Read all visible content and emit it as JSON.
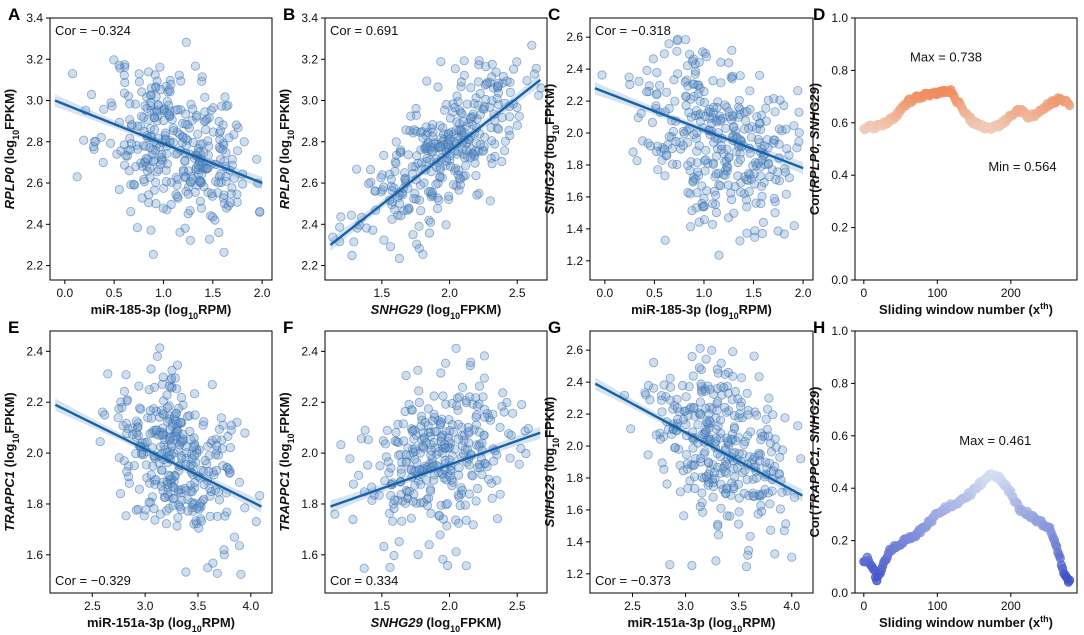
{
  "chart_data": [
    {
      "id": "A",
      "type": "scatter",
      "letter": "A",
      "xlabel": [
        {
          "t": "miR-185-3p (log"
        },
        {
          "t": "10",
          "sub": true
        },
        {
          "t": "RPM)"
        }
      ],
      "ylabel": [
        {
          "t": "RPLP0",
          "i": true
        },
        {
          "t": " (log"
        },
        {
          "t": "10",
          "sub": true
        },
        {
          "t": "FPKM)"
        }
      ],
      "xlim": [
        -0.15,
        2.1
      ],
      "ylim": [
        2.13,
        3.4
      ],
      "xticks": [
        "0.0",
        "0.5",
        "1.0",
        "1.5",
        "2.0"
      ],
      "yticks": [
        "2.2",
        "2.4",
        "2.6",
        "2.8",
        "3.0",
        "3.2",
        "3.4"
      ],
      "annotation": "Cor = −0.324",
      "ann_pos": "top-left",
      "cloud": {
        "n": 340,
        "xm": 1.15,
        "xs": 0.38,
        "ym": 2.78,
        "ys": 0.2,
        "r": -0.324,
        "xmin": -0.1,
        "xmax": 1.98,
        "ymin": 2.17,
        "ymax": 3.3,
        "seed": 11
      },
      "fit": {
        "x": [
          -0.1,
          2.0
        ],
        "y": [
          3.0,
          2.6
        ]
      }
    },
    {
      "id": "B",
      "type": "scatter",
      "letter": "B",
      "xlabel": [
        {
          "t": "SNHG29",
          "i": true
        },
        {
          "t": " (log"
        },
        {
          "t": "10",
          "sub": true
        },
        {
          "t": "FPKM)"
        }
      ],
      "ylabel": [
        {
          "t": "RPLP0",
          "i": true
        },
        {
          "t": " (log"
        },
        {
          "t": "10",
          "sub": true
        },
        {
          "t": "FPKM)"
        }
      ],
      "xlim": [
        1.08,
        2.72
      ],
      "ylim": [
        2.13,
        3.4
      ],
      "xticks": [
        "1.5",
        "2.0",
        "2.5"
      ],
      "yticks": [
        "2.2",
        "2.4",
        "2.6",
        "2.8",
        "3.0",
        "3.2",
        "3.4"
      ],
      "annotation": "Cor = 0.691",
      "ann_pos": "top-left",
      "cloud": {
        "n": 340,
        "xm": 1.95,
        "xs": 0.3,
        "ym": 2.75,
        "ys": 0.2,
        "r": 0.691,
        "xmin": 1.12,
        "xmax": 2.68,
        "ymin": 2.18,
        "ymax": 3.33,
        "seed": 23
      },
      "fit": {
        "x": [
          1.12,
          2.67
        ],
        "y": [
          2.3,
          3.1
        ]
      }
    },
    {
      "id": "C",
      "type": "scatter",
      "letter": "C",
      "xlabel": [
        {
          "t": "miR-185-3p (log"
        },
        {
          "t": "10",
          "sub": true
        },
        {
          "t": "RPM)"
        }
      ],
      "ylabel": [
        {
          "t": "SNHG29",
          "i": true
        },
        {
          "t": " (log"
        },
        {
          "t": "10",
          "sub": true
        },
        {
          "t": "FPKM)"
        }
      ],
      "xlim": [
        -0.15,
        2.1
      ],
      "ylim": [
        1.08,
        2.72
      ],
      "xticks": [
        "0.0",
        "0.5",
        "1.0",
        "1.5",
        "2.0"
      ],
      "yticks": [
        "1.2",
        "1.4",
        "1.6",
        "1.8",
        "2.0",
        "2.2",
        "2.4",
        "2.6"
      ],
      "annotation": "Cor = −0.318",
      "ann_pos": "top-left",
      "cloud": {
        "n": 340,
        "xm": 1.15,
        "xs": 0.38,
        "ym": 1.98,
        "ys": 0.28,
        "r": -0.318,
        "xmin": -0.1,
        "xmax": 1.98,
        "ymin": 1.15,
        "ymax": 2.63,
        "seed": 37
      },
      "fit": {
        "x": [
          -0.1,
          2.0
        ],
        "y": [
          2.28,
          1.78
        ]
      }
    },
    {
      "id": "D",
      "type": "sliding",
      "letter": "D",
      "xlabel": [
        {
          "t": "Sliding window number (x"
        },
        {
          "t": "th",
          "sup": true
        },
        {
          "t": ")"
        }
      ],
      "ylabel": [
        {
          "t": "Cor("
        },
        {
          "t": "RPLP0, SNHG29",
          "i": true
        },
        {
          "t": ")"
        }
      ],
      "xlim": [
        -12,
        290
      ],
      "ylim": [
        0,
        1.0
      ],
      "xticks": [
        "0",
        "100",
        "200"
      ],
      "yticks": [
        "0.0",
        "0.2",
        "0.4",
        "0.6",
        "0.8",
        "1.0"
      ],
      "max_label": "Max = 0.738",
      "min_label": "Min = 0.564",
      "color_low": "#f0cbb8",
      "color_high": "#f08a5c",
      "curve": {
        "x": [
          0,
          15,
          30,
          45,
          60,
          75,
          90,
          105,
          118,
          128,
          140,
          150,
          160,
          175,
          190,
          205,
          215,
          225,
          240,
          255,
          268,
          280
        ],
        "y": [
          0.58,
          0.585,
          0.6,
          0.63,
          0.68,
          0.7,
          0.71,
          0.72,
          0.72,
          0.68,
          0.63,
          0.6,
          0.585,
          0.58,
          0.6,
          0.64,
          0.65,
          0.62,
          0.64,
          0.68,
          0.69,
          0.67
        ]
      }
    },
    {
      "id": "E",
      "type": "scatter",
      "letter": "E",
      "xlabel": [
        {
          "t": "miR-151a-3p (log"
        },
        {
          "t": "10",
          "sub": true
        },
        {
          "t": "RPM)"
        }
      ],
      "ylabel": [
        {
          "t": "TRAPPC1",
          "i": true
        },
        {
          "t": " (log"
        },
        {
          "t": "10",
          "sub": true
        },
        {
          "t": "FPKM)"
        }
      ],
      "xlim": [
        2.1,
        4.2
      ],
      "ylim": [
        1.45,
        2.48
      ],
      "xticks": [
        "2.5",
        "3.0",
        "3.5",
        "4.0"
      ],
      "yticks": [
        "1.6",
        "1.8",
        "2.0",
        "2.2",
        "2.4"
      ],
      "annotation": "Cor = −0.329",
      "ann_pos": "bottom-left",
      "cloud": {
        "n": 330,
        "xm": 3.3,
        "xs": 0.3,
        "ym": 1.98,
        "ys": 0.16,
        "r": -0.329,
        "xmin": 2.2,
        "xmax": 4.1,
        "ymin": 1.48,
        "ymax": 2.43,
        "seed": 41
      },
      "fit": {
        "x": [
          2.15,
          4.1
        ],
        "y": [
          2.19,
          1.79
        ]
      }
    },
    {
      "id": "F",
      "type": "scatter",
      "letter": "F",
      "xlabel": [
        {
          "t": "SNHG29",
          "i": true
        },
        {
          "t": " (log"
        },
        {
          "t": "10",
          "sub": true
        },
        {
          "t": "FPKM)"
        }
      ],
      "ylabel": [
        {
          "t": "TRAPPC1",
          "i": true
        },
        {
          "t": " (log"
        },
        {
          "t": "10",
          "sub": true
        },
        {
          "t": "FPKM)"
        }
      ],
      "xlim": [
        1.08,
        2.72
      ],
      "ylim": [
        1.45,
        2.48
      ],
      "xticks": [
        "1.5",
        "2.0",
        "2.5"
      ],
      "yticks": [
        "1.6",
        "1.8",
        "2.0",
        "2.2",
        "2.4"
      ],
      "annotation": "Cor = 0.334",
      "ann_pos": "bottom-left",
      "cloud": {
        "n": 330,
        "xm": 1.95,
        "xs": 0.3,
        "ym": 1.98,
        "ys": 0.16,
        "r": 0.334,
        "xmin": 1.12,
        "xmax": 2.68,
        "ymin": 1.5,
        "ymax": 2.43,
        "seed": 53
      },
      "fit": {
        "x": [
          1.12,
          2.67
        ],
        "y": [
          1.79,
          2.08
        ]
      }
    },
    {
      "id": "G",
      "type": "scatter",
      "letter": "G",
      "xlabel": [
        {
          "t": "miR-151a-3p (log"
        },
        {
          "t": "10",
          "sub": true
        },
        {
          "t": "RPM)"
        }
      ],
      "ylabel": [
        {
          "t": "SNHG29",
          "i": true
        },
        {
          "t": " (log"
        },
        {
          "t": "10",
          "sub": true
        },
        {
          "t": "FPKM)"
        }
      ],
      "xlim": [
        2.1,
        4.2
      ],
      "ylim": [
        1.08,
        2.72
      ],
      "xticks": [
        "2.5",
        "3.0",
        "3.5",
        "4.0"
      ],
      "yticks": [
        "1.2",
        "1.4",
        "1.6",
        "1.8",
        "2.0",
        "2.2",
        "2.4",
        "2.6"
      ],
      "annotation": "Cor = −0.373",
      "ann_pos": "bottom-left",
      "cloud": {
        "n": 330,
        "xm": 3.3,
        "xs": 0.3,
        "ym": 1.98,
        "ys": 0.28,
        "r": -0.373,
        "xmin": 2.2,
        "xmax": 4.1,
        "ymin": 1.13,
        "ymax": 2.63,
        "seed": 67
      },
      "fit": {
        "x": [
          2.15,
          4.1
        ],
        "y": [
          2.39,
          1.69
        ]
      }
    },
    {
      "id": "H",
      "type": "sliding",
      "letter": "H",
      "xlabel": [
        {
          "t": "Sliding window number (x"
        },
        {
          "t": "th",
          "sup": true
        },
        {
          "t": ")"
        }
      ],
      "ylabel": [
        {
          "t": "Cor("
        },
        {
          "t": "TRAPPC1, SNHG29",
          "i": true
        },
        {
          "t": ")"
        }
      ],
      "xlim": [
        -12,
        290
      ],
      "ylim": [
        0,
        1.0
      ],
      "xticks": [
        "0",
        "100",
        "200"
      ],
      "yticks": [
        "0.0",
        "0.2",
        "0.4",
        "0.6",
        "0.8",
        "1.0"
      ],
      "max_label": "Max = 0.461",
      "min_label": "",
      "color_low": "#3d4fc6",
      "color_high": "#d4def2",
      "curve": {
        "x": [
          0,
          6,
          12,
          18,
          25,
          35,
          45,
          55,
          70,
          85,
          100,
          115,
          130,
          145,
          160,
          172,
          185,
          200,
          212,
          225,
          240,
          255,
          265,
          272,
          280
        ],
        "y": [
          0.12,
          0.13,
          0.1,
          0.05,
          0.1,
          0.16,
          0.18,
          0.2,
          0.22,
          0.26,
          0.3,
          0.33,
          0.35,
          0.38,
          0.42,
          0.45,
          0.44,
          0.38,
          0.32,
          0.3,
          0.27,
          0.24,
          0.15,
          0.08,
          0.04
        ]
      }
    }
  ]
}
